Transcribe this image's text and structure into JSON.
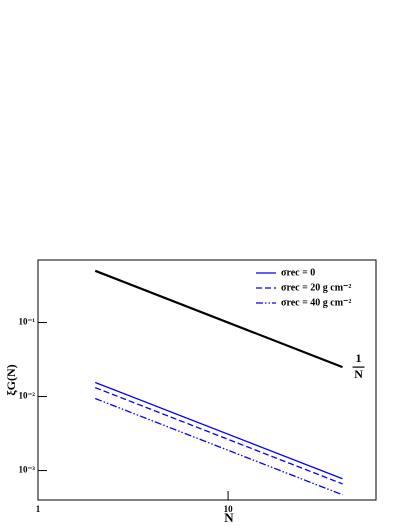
{
  "chart_data": {
    "type": "line",
    "xlabel": "N",
    "ylabel": "ξG(N)",
    "xscale": "log",
    "yscale": "log",
    "xlim": [
      1,
      60
    ],
    "ylim": [
      0.0004,
      0.7
    ],
    "xticks": [
      1,
      10
    ],
    "yticks": [
      {
        "value": 0.001,
        "label": "10⁻³"
      },
      {
        "value": 0.01,
        "label": "10⁻²"
      },
      {
        "value": 0.1,
        "label": "10⁻¹"
      }
    ],
    "legend": "upper right",
    "annotation": {
      "numerator": "1",
      "denominator": "N"
    },
    "series": [
      {
        "name": "1/N",
        "legend": false,
        "color": "#000000",
        "style": "solid",
        "width": 2.2,
        "x": [
          2,
          40
        ],
        "values": [
          0.5,
          0.025
        ]
      },
      {
        "name": "σrec = 0",
        "color": "#0000ff",
        "style": "solid",
        "width": 1.3,
        "x": [
          2,
          40
        ],
        "values": [
          0.0155,
          0.000775
        ]
      },
      {
        "name": "σrec = 20 g cm⁻²",
        "color": "#0000ff",
        "style": "dashed",
        "width": 1.3,
        "x": [
          2,
          40
        ],
        "values": [
          0.0132,
          0.00066
        ]
      },
      {
        "name": "σrec = 40 g cm⁻²",
        "color": "#0000ff",
        "style": "dashdot",
        "width": 1.3,
        "x": [
          2,
          40
        ],
        "values": [
          0.0094,
          0.00047
        ]
      }
    ]
  }
}
